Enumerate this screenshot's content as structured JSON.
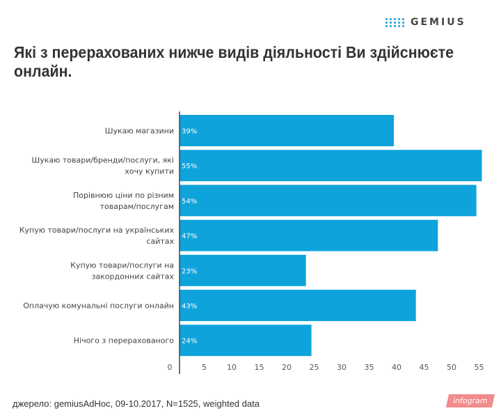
{
  "header": {
    "logo_text": "GEMIUS",
    "title": "Які з перерахованих нижче видів діяльності Ви здійснюєте онлайн."
  },
  "chart_data": {
    "type": "bar",
    "orientation": "horizontal",
    "categories": [
      [
        "Шукаю магазини"
      ],
      [
        "Шукаю товари/бренди/послуги, які",
        "хочу купити"
      ],
      [
        "Порівнюю ціни по різним",
        "товарам/послугам"
      ],
      [
        "Купую товари/послуги на українських",
        "сайтах"
      ],
      [
        "Купую товари/послуги на",
        "закордонних сайтах"
      ],
      [
        "Оплачую комунальні послуги онлайн"
      ],
      [
        "Нічого з перерахованого"
      ]
    ],
    "values": [
      39,
      55,
      54,
      47,
      23,
      43,
      24
    ],
    "labels": [
      "39%",
      "55%",
      "54%",
      "47%",
      "23%",
      "43%",
      "24%"
    ],
    "xticks": [
      0,
      5,
      10,
      15,
      20,
      25,
      30,
      35,
      40,
      45,
      50,
      55
    ],
    "xlim": [
      0,
      56
    ],
    "color": "#0fa3dc"
  },
  "footer": {
    "source": "джерело:  gemiusAdHoc, 09-10.2017, N=1525, weighted data",
    "badge": "infogram"
  }
}
